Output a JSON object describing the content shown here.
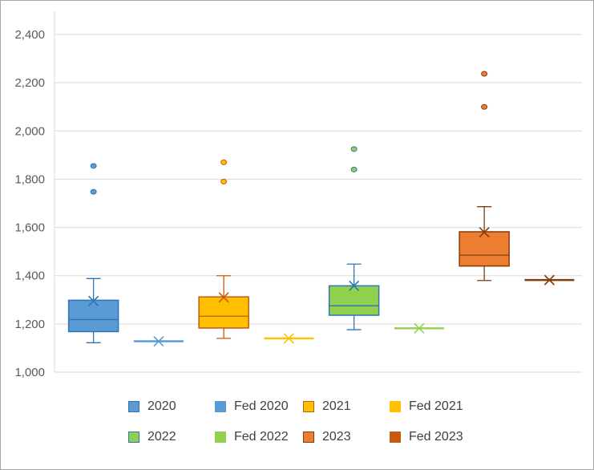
{
  "chart_data": {
    "type": "box",
    "ylim": [
      1000,
      2400
    ],
    "yticks": [
      1000,
      1200,
      1400,
      1600,
      1800,
      2000,
      2200,
      2400
    ],
    "ytick_labels": [
      "1,000",
      "1,200",
      "1,400",
      "1,600",
      "1,800",
      "2,000",
      "2,200",
      "2,400"
    ],
    "grid": true,
    "legend_position": "bottom",
    "series": [
      {
        "name": "2020",
        "kind": "box",
        "min": 1122,
        "q1": 1168,
        "median": 1218,
        "q3": 1298,
        "max": 1388,
        "mean": 1295,
        "outliers": [
          1748,
          1855
        ],
        "fill": "#5b9bd5",
        "stroke": "#2e75b6"
      },
      {
        "name": "Fed 2020",
        "kind": "flat",
        "value": 1128,
        "fill": "#5b9bd5",
        "stroke": "#5b9bd5"
      },
      {
        "name": "2021",
        "kind": "box",
        "min": 1140,
        "q1": 1183,
        "median": 1232,
        "q3": 1312,
        "max": 1400,
        "mean": 1310,
        "outliers": [
          1790,
          1870
        ],
        "fill": "#ffc000",
        "stroke": "#c55a11"
      },
      {
        "name": "Fed 2021",
        "kind": "flat",
        "value": 1140,
        "fill": "#ffc000",
        "stroke": "#ffc000"
      },
      {
        "name": "2022",
        "kind": "box",
        "min": 1176,
        "q1": 1236,
        "median": 1275,
        "q3": 1358,
        "max": 1448,
        "mean": 1358,
        "outliers": [
          1840,
          1925
        ],
        "fill": "#92d050",
        "stroke": "#2e75b6"
      },
      {
        "name": "Fed 2022",
        "kind": "flat",
        "value": 1182,
        "fill": "#92d050",
        "stroke": "#92d050"
      },
      {
        "name": "2023",
        "kind": "box",
        "min": 1380,
        "q1": 1440,
        "median": 1485,
        "q3": 1582,
        "max": 1686,
        "mean": 1580,
        "outliers": [
          2100,
          2237
        ],
        "fill": "#ed7d31",
        "stroke": "#843c0c"
      },
      {
        "name": "Fed 2023",
        "kind": "flat",
        "value": 1382,
        "fill": "#c55a11",
        "stroke": "#843c0c"
      }
    ]
  }
}
